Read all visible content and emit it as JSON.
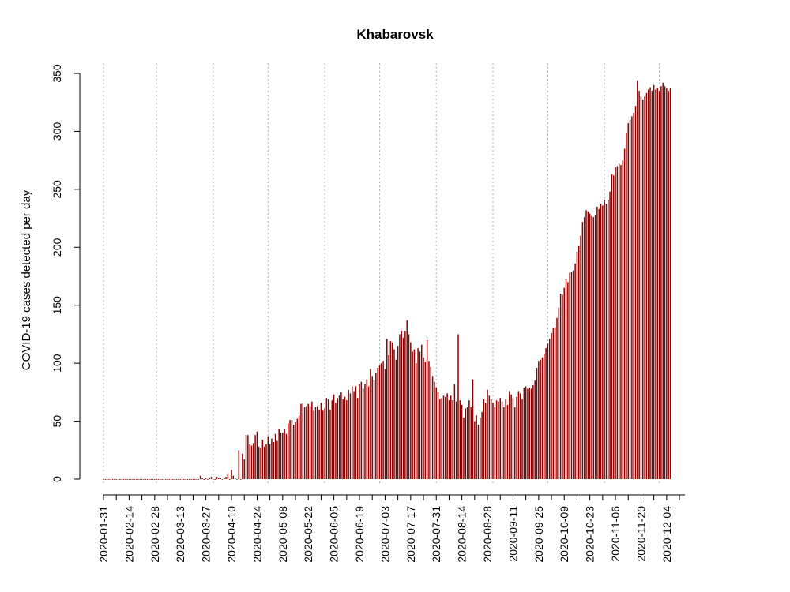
{
  "chart_data": {
    "type": "bar",
    "title": "Khabarovsk",
    "xlabel": "",
    "ylabel": "COVID-19 cases detected per day",
    "start_date": "2020-01-31",
    "end_date": "2020-12-14",
    "ylim": [
      0,
      350
    ],
    "yticks": [
      0,
      50,
      100,
      150,
      200,
      250,
      300,
      350
    ],
    "xtick_labels": [
      "2020-01-31",
      "2020-02-14",
      "2020-02-28",
      "2020-03-13",
      "2020-03-27",
      "2020-04-10",
      "2020-04-24",
      "2020-05-08",
      "2020-05-22",
      "2020-06-05",
      "2020-06-19",
      "2020-07-03",
      "2020-07-17",
      "2020-07-31",
      "2020-08-14",
      "2020-08-28",
      "2020-09-11",
      "2020-09-25",
      "2020-10-09",
      "2020-10-23",
      "2020-11-06",
      "2020-11-20",
      "2020-12-04"
    ],
    "grid_dates": [
      "2020-01-31",
      "2020-02-29",
      "2020-03-31",
      "2020-04-30",
      "2020-05-31",
      "2020-06-30",
      "2020-07-31",
      "2020-08-31",
      "2020-09-30",
      "2020-10-31",
      "2020-11-30"
    ],
    "grid": true,
    "bar_color": "#8b0000",
    "values": [
      0,
      0,
      0,
      0,
      0,
      0,
      0,
      0,
      0,
      0,
      0,
      0,
      0,
      0,
      0,
      0,
      0,
      0,
      0,
      0,
      0,
      0,
      0,
      0,
      0,
      0,
      0,
      0,
      0,
      0,
      0,
      0,
      0,
      0,
      0,
      0,
      0,
      0,
      0,
      0,
      0,
      0,
      0,
      0,
      0,
      0,
      0,
      0,
      0,
      0,
      0,
      0,
      0,
      3,
      1,
      0,
      1,
      0,
      1,
      2,
      0,
      0,
      2,
      1,
      1,
      0,
      1,
      2,
      5,
      0,
      8,
      3,
      1,
      0,
      25,
      0,
      22,
      17,
      38,
      38,
      30,
      29,
      31,
      38,
      41,
      28,
      27,
      34,
      28,
      30,
      37,
      30,
      35,
      32,
      39,
      33,
      43,
      40,
      40,
      43,
      39,
      48,
      51,
      51,
      47,
      49,
      52,
      55,
      65,
      65,
      62,
      63,
      65,
      63,
      67,
      59,
      62,
      63,
      60,
      66,
      59,
      61,
      70,
      69,
      60,
      68,
      73,
      66,
      70,
      72,
      75,
      69,
      71,
      68,
      77,
      74,
      80,
      76,
      80,
      70,
      82,
      84,
      78,
      82,
      86,
      80,
      95,
      89,
      85,
      92,
      96,
      98,
      100,
      102,
      95,
      121,
      107,
      119,
      118,
      112,
      103,
      115,
      125,
      128,
      122,
      128,
      137,
      125,
      118,
      110,
      112,
      100,
      113,
      110,
      116,
      105,
      101,
      120,
      102,
      97,
      89,
      84,
      79,
      75,
      69,
      70,
      72,
      71,
      74,
      68,
      72,
      68,
      82,
      67,
      125,
      68,
      64,
      53,
      61,
      62,
      68,
      62,
      86,
      50,
      55,
      47,
      53,
      58,
      69,
      66,
      77,
      72,
      69,
      66,
      62,
      68,
      67,
      70,
      67,
      62,
      69,
      64,
      76,
      73,
      70,
      62,
      71,
      76,
      74,
      69,
      79,
      80,
      78,
      79,
      78,
      81,
      85,
      96,
      102,
      103,
      105,
      108,
      113,
      117,
      121,
      126,
      130,
      131,
      139,
      148,
      160,
      159,
      165,
      173,
      170,
      178,
      179,
      180,
      186,
      196,
      201,
      210,
      222,
      226,
      232,
      231,
      229,
      227,
      226,
      228,
      235,
      233,
      237,
      236,
      241,
      237,
      241,
      248,
      263,
      262,
      269,
      270,
      272,
      271,
      275,
      285,
      299,
      307,
      310,
      313,
      316,
      322,
      344,
      335,
      330,
      327,
      330,
      333,
      336,
      338,
      335,
      340,
      336,
      337,
      335,
      339,
      342,
      339,
      337,
      335,
      337
    ]
  }
}
